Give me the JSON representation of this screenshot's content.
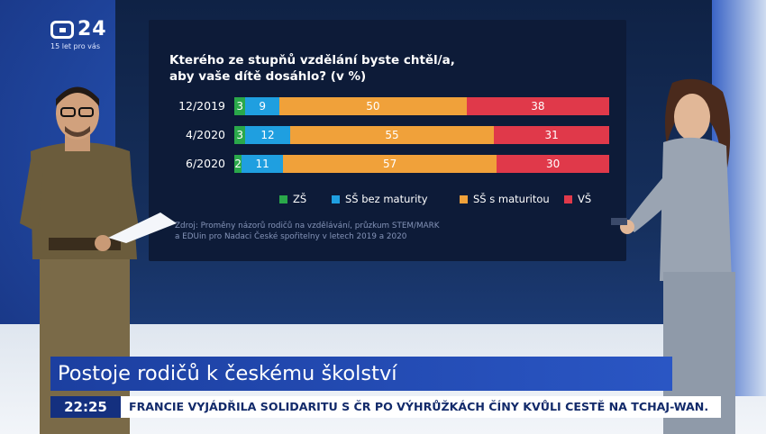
{
  "channel": {
    "logo_text": "24",
    "tagline": "15 let pro vás"
  },
  "chart_data": {
    "type": "bar",
    "stacked": true,
    "orientation": "horizontal",
    "title": "Kterého ze stupňů vzdělání byste chtěl/a,",
    "title_line2": "aby vaše dítě dosáhlo? (v %)",
    "categories": [
      "12/2019",
      "4/2020",
      "6/2020"
    ],
    "series": [
      {
        "name": "ZŠ",
        "color": "#2aa84a",
        "values": [
          3,
          3,
          2
        ]
      },
      {
        "name": "SŠ bez maturity",
        "color": "#1f9fe0",
        "values": [
          9,
          12,
          11
        ]
      },
      {
        "name": "SŠ s maturitou",
        "color": "#f0a13a",
        "values": [
          50,
          55,
          57
        ]
      },
      {
        "name": "VŠ",
        "color": "#e0394a",
        "values": [
          38,
          31,
          30
        ]
      }
    ],
    "source_line1": "Zdroj: Proměny názorů rodičů na vzdělávání, průzkum STEM/MARK",
    "source_line2": "a EDUin pro Nadaci České spořitelny v letech 2019 a 2020"
  },
  "lower_third": {
    "headline": "Postoje rodičů k českému školství",
    "time": "22:25",
    "ticker": "FRANCIE VYJÁDŘILA SOLIDARITU S ČR PO VÝHRŮŽKÁCH ČÍNY KVŮLI CESTĚ NA TCHAJ-WAN."
  }
}
